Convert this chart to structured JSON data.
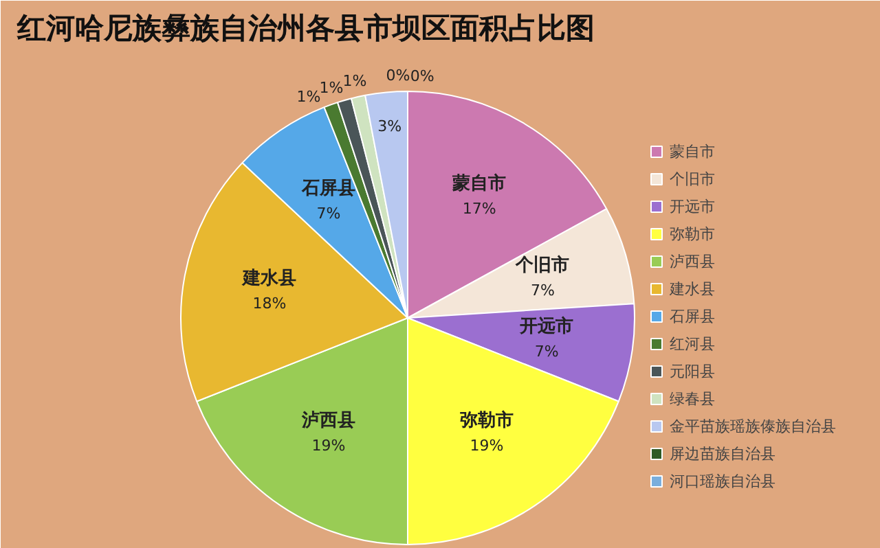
{
  "chart_data": {
    "type": "pie",
    "title": "红河哈尼族彝族自治州各县市坝区面积占比图",
    "categories": [
      "蒙自市",
      "个旧市",
      "开远市",
      "弥勒市",
      "泸西县",
      "建水县",
      "石屏县",
      "红河县",
      "元阳县",
      "绿春县",
      "金平苗族瑶族傣族自治县",
      "屏边苗族自治县",
      "河口瑶族自治县"
    ],
    "values": [
      17,
      7,
      7,
      19,
      19,
      18,
      7,
      1,
      1,
      1,
      3,
      0,
      0
    ],
    "colors": [
      "#cc79b0",
      "#f4e6d8",
      "#9b6fd0",
      "#ffff40",
      "#99cc55",
      "#e8b830",
      "#55a8e8",
      "#4a7a30",
      "#4a5558",
      "#cfe3c0",
      "#b8c8f0",
      "#2f5a25",
      "#7aaedc"
    ],
    "value_labels": [
      "17%",
      "7%",
      "7%",
      "19%",
      "19%",
      "18%",
      "7%",
      "1%",
      "1%",
      "1%",
      "3%",
      "0%",
      "0%"
    ],
    "legend": "right"
  }
}
